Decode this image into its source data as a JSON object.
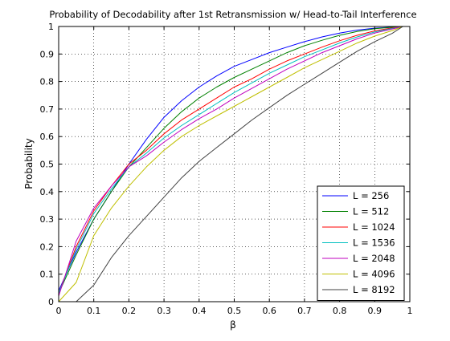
{
  "chart_data": {
    "type": "line",
    "title": "Probability of Decodability after 1st Retransmission w/ Head-to-Tail Interference",
    "xlabel": "β",
    "ylabel": "Probability",
    "xlim": [
      0,
      1
    ],
    "ylim": [
      0,
      1
    ],
    "xticks": [
      0,
      0.1,
      0.2,
      0.3,
      0.4,
      0.5,
      0.6,
      0.7,
      0.8,
      0.9,
      1
    ],
    "yticks": [
      0,
      0.1,
      0.2,
      0.3,
      0.4,
      0.5,
      0.6,
      0.7,
      0.8,
      0.9,
      1
    ],
    "xtick_labels": [
      "0",
      "0.1",
      "0.2",
      "0.3",
      "0.4",
      "0.5",
      "0.6",
      "0.7",
      "0.8",
      "0.9",
      "1"
    ],
    "ytick_labels": [
      "0",
      "0.1",
      "0.2",
      "0.3",
      "0.4",
      "0.5",
      "0.6",
      "0.7",
      "0.8",
      "0.9",
      "1"
    ],
    "grid": true,
    "legend_position": "bottom-right",
    "x": [
      0.0,
      0.05,
      0.1,
      0.15,
      0.2,
      0.25,
      0.3,
      0.35,
      0.4,
      0.45,
      0.5,
      0.55,
      0.6,
      0.65,
      0.7,
      0.75,
      0.8,
      0.85,
      0.9,
      0.95,
      0.98
    ],
    "series": [
      {
        "name": "L = 256",
        "color": "#0000ff",
        "values": [
          0.04,
          0.18,
          0.3,
          0.4,
          0.5,
          0.59,
          0.67,
          0.73,
          0.78,
          0.82,
          0.855,
          0.88,
          0.905,
          0.925,
          0.945,
          0.962,
          0.976,
          0.987,
          0.994,
          0.998,
          1.0
        ]
      },
      {
        "name": "L = 512",
        "color": "#008000",
        "values": [
          0.03,
          0.17,
          0.3,
          0.4,
          0.49,
          0.56,
          0.63,
          0.69,
          0.74,
          0.78,
          0.815,
          0.845,
          0.875,
          0.905,
          0.93,
          0.95,
          0.968,
          0.982,
          0.992,
          0.997,
          1.0
        ]
      },
      {
        "name": "L = 1024",
        "color": "#ff0000",
        "values": [
          0.03,
          0.2,
          0.33,
          0.42,
          0.5,
          0.55,
          0.61,
          0.66,
          0.7,
          0.74,
          0.78,
          0.81,
          0.845,
          0.875,
          0.9,
          0.925,
          0.948,
          0.968,
          0.984,
          0.995,
          1.0
        ]
      },
      {
        "name": "L = 1536",
        "color": "#00bfbf",
        "values": [
          0.03,
          0.19,
          0.32,
          0.41,
          0.49,
          0.54,
          0.595,
          0.64,
          0.68,
          0.72,
          0.76,
          0.795,
          0.83,
          0.86,
          0.89,
          0.915,
          0.94,
          0.962,
          0.98,
          0.993,
          1.0
        ]
      },
      {
        "name": "L = 2048",
        "color": "#bf00bf",
        "values": [
          0.02,
          0.22,
          0.34,
          0.42,
          0.49,
          0.53,
          0.58,
          0.625,
          0.665,
          0.7,
          0.74,
          0.775,
          0.81,
          0.845,
          0.875,
          0.905,
          0.93,
          0.955,
          0.976,
          0.991,
          1.0
        ]
      },
      {
        "name": "L = 4096",
        "color": "#bfbf00",
        "values": [
          0.0,
          0.07,
          0.24,
          0.34,
          0.42,
          0.49,
          0.55,
          0.6,
          0.64,
          0.675,
          0.71,
          0.745,
          0.78,
          0.815,
          0.85,
          0.88,
          0.91,
          0.94,
          0.965,
          0.985,
          1.0
        ]
      },
      {
        "name": "L = 8192",
        "color": "#404040",
        "values": [
          0.0,
          0.0,
          0.06,
          0.16,
          0.24,
          0.31,
          0.38,
          0.45,
          0.51,
          0.56,
          0.61,
          0.66,
          0.705,
          0.75,
          0.79,
          0.83,
          0.87,
          0.91,
          0.945,
          0.975,
          1.0
        ]
      }
    ]
  }
}
